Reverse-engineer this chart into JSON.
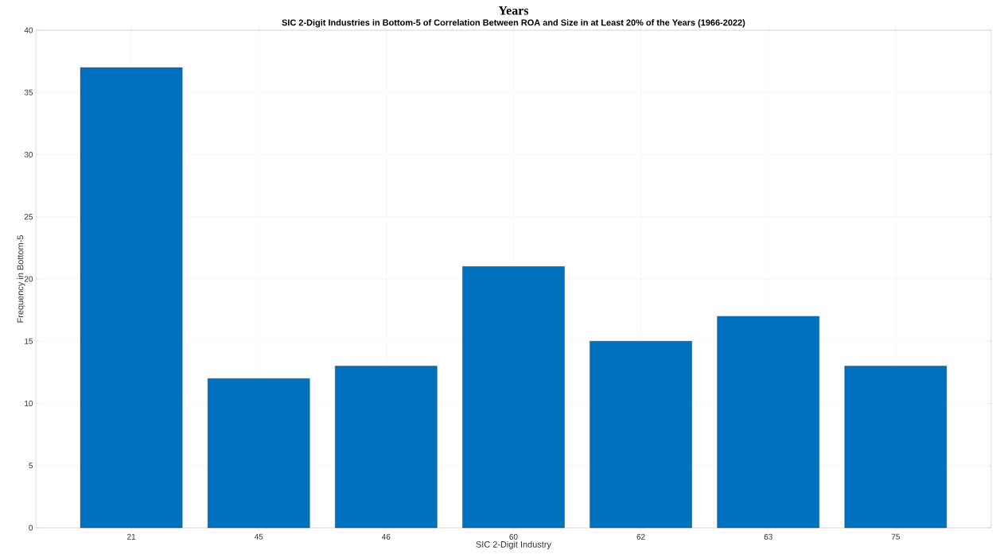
{
  "chart_data": {
    "type": "bar",
    "title": "SIC 2-Digit Industries in Bottom-5 of Correlation Between ROA and Size in at Least 20% of the Years (1966-2022)",
    "annotations": [
      "Years"
    ],
    "xlabel": "SIC 2-Digit Industry",
    "ylabel": "Frequency in Bottom-5",
    "categories": [
      "21",
      "45",
      "46",
      "60",
      "62",
      "63",
      "75"
    ],
    "values": [
      37,
      12,
      13,
      21,
      15,
      17,
      13
    ],
    "color": "#0072bd",
    "ylim": [
      0,
      40
    ],
    "yticks": [
      0,
      5,
      10,
      15,
      20,
      25,
      30,
      35,
      40
    ],
    "grid": true
  }
}
